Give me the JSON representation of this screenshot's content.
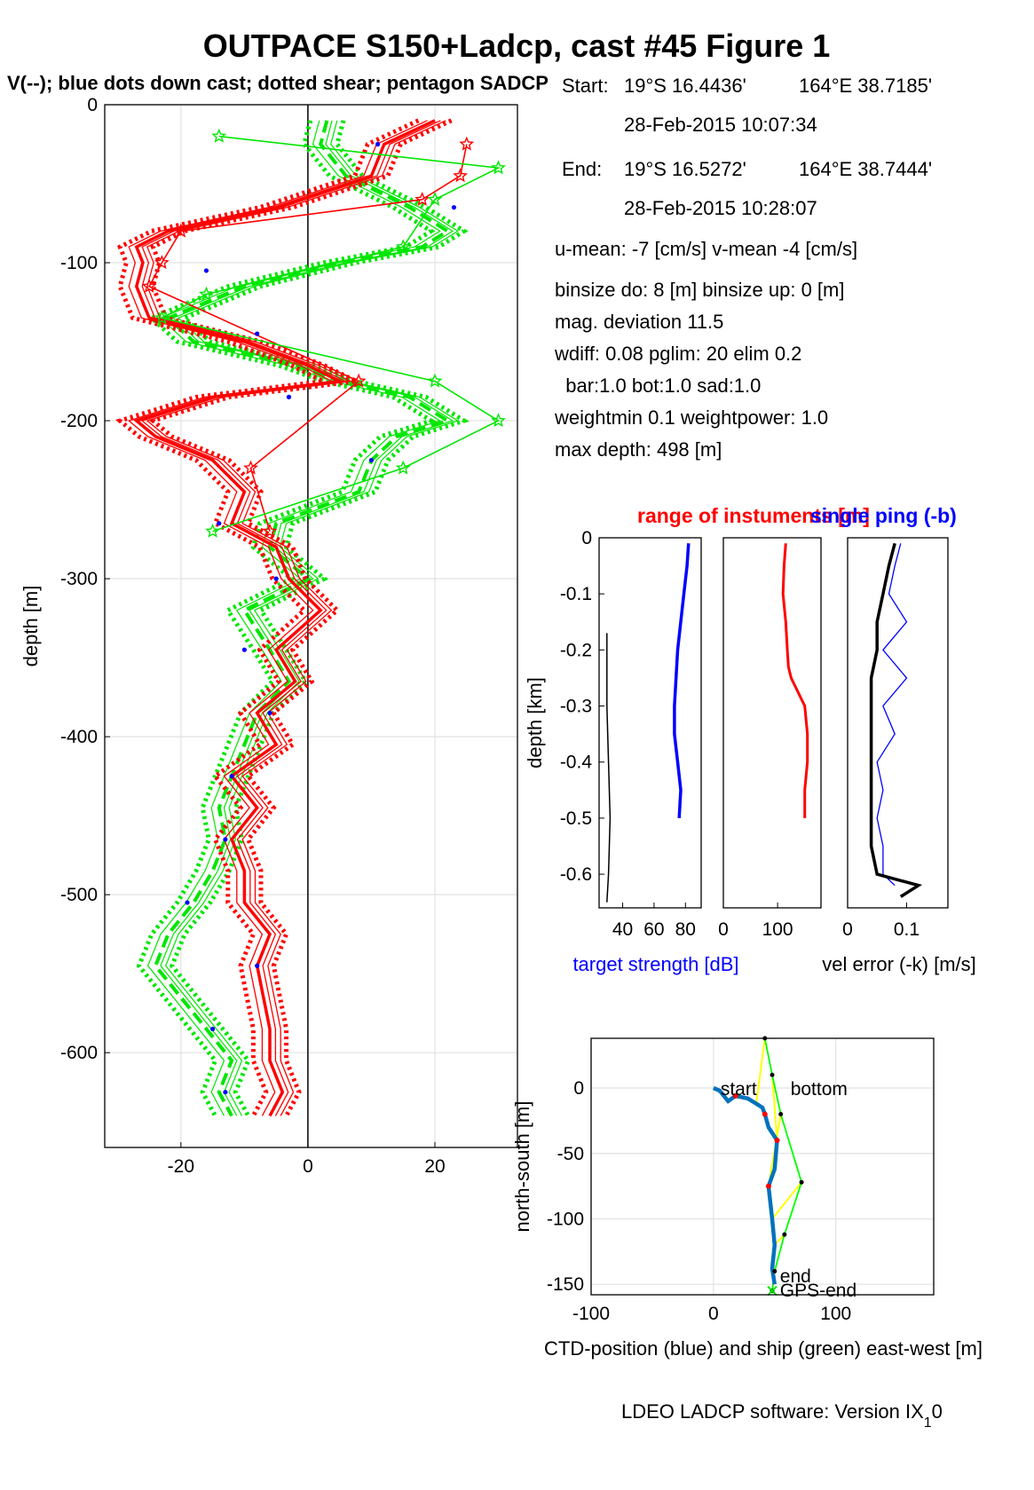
{
  "figure": {
    "title": "OUTPACE S150+Ladcp, cast #45  Figure 1",
    "subtitle": "V(--); blue dots down cast; dotted shear; pentagon SADCP",
    "footer": "LDEO LADCP software: Version IX",
    "footer_sub": "1",
    "footer_end": "0"
  },
  "info": {
    "start_label": "Start:",
    "start_lat": "19°S 16.4436'",
    "start_lon": "164°E 38.7185'",
    "start_time": "28-Feb-2015 10:07:34",
    "end_label": "End:",
    "end_lat": "19°S 16.5272'",
    "end_lon": "164°E 38.7444'",
    "end_time": "28-Feb-2015 10:28:07",
    "lines": [
      "u-mean:  -7 [cm/s]    v-mean  -4 [cm/s]",
      "binsize do: 8 [m]  binsize up:  0 [m]",
      "mag. deviation 11.5",
      "wdiff: 0.08  pglim: 20  elim 0.2",
      "  bar:1.0 bot:1.0 sad:1.0",
      "weightmin 0.1  weightpower: 1.0",
      "max depth: 498 [m]"
    ]
  },
  "colors": {
    "u": "#ff0000",
    "v": "#00e600",
    "down": "#0000ff",
    "ctd": "#0072bd",
    "ship": "#00ff00",
    "conn": "#ffff00",
    "grid": "#e2e2e2"
  },
  "chart_data": [
    {
      "type": "line",
      "ylabel": "depth [m]",
      "xlim": [
        -32,
        33
      ],
      "ylim": [
        -660,
        0
      ],
      "xticks": [
        "-20",
        "0",
        "20"
      ],
      "yticks": [
        "0",
        "-100",
        "-200",
        "-300",
        "-400",
        "-500",
        "-600"
      ],
      "grid": true,
      "series": [
        {
          "name": "u",
          "depth": [
            -10,
            -25,
            -45,
            -65,
            -80,
            -90,
            -100,
            -115,
            -135,
            -150,
            -165,
            -175,
            -185,
            -200,
            -210,
            -225,
            -245,
            -265,
            -280,
            -300,
            -320,
            -345,
            -365,
            -385,
            -405,
            -425,
            -445,
            -465,
            -485,
            -505,
            -525,
            -545,
            -565,
            -585,
            -605,
            -625,
            -640
          ],
          "values": [
            20,
            12,
            10,
            -5,
            -22,
            -27,
            -26,
            -27,
            -25,
            -10,
            0,
            5,
            -15,
            -27,
            -24,
            -15,
            -10,
            -12,
            -5,
            -3,
            2,
            -5,
            -2,
            -8,
            -5,
            -12,
            -8,
            -12,
            -10,
            -10,
            -6,
            -8,
            -7,
            -6,
            -6,
            -4,
            -6
          ]
        },
        {
          "name": "v",
          "depth": [
            -10,
            -25,
            -45,
            -65,
            -80,
            -90,
            -100,
            -115,
            -135,
            -150,
            -165,
            -175,
            -185,
            -200,
            -210,
            -225,
            -245,
            -265,
            -280,
            -300,
            -320,
            -345,
            -365,
            -385,
            -405,
            -425,
            -445,
            -465,
            -485,
            -505,
            -525,
            -545,
            -565,
            -585,
            -605,
            -625,
            -640
          ],
          "values": [
            3,
            2,
            6,
            16,
            22,
            18,
            5,
            -10,
            -22,
            -18,
            -2,
            5,
            16,
            22,
            14,
            10,
            8,
            -5,
            -6,
            0,
            -10,
            -6,
            -3,
            -8,
            -10,
            -12,
            -14,
            -13,
            -15,
            -18,
            -22,
            -24,
            -20,
            -16,
            -12,
            -14,
            -12
          ]
        },
        {
          "name": "down",
          "depth": [
            -25,
            -65,
            -105,
            -145,
            -185,
            -225,
            -265,
            -300,
            -345,
            -385,
            -425,
            -465,
            -505,
            -545,
            -585,
            -625
          ],
          "values": [
            11,
            23,
            -16,
            -8,
            -3,
            10,
            -14,
            -5,
            -10,
            -6,
            -12,
            -13,
            -19,
            -8,
            -15,
            -13
          ]
        },
        {
          "name": "sadcp_u",
          "depth": [
            -25,
            -45,
            -60,
            -80,
            -100,
            -115,
            -175,
            -230,
            -270
          ],
          "values": [
            25,
            24,
            18,
            -20,
            -23,
            -25,
            8,
            -9,
            -6
          ]
        },
        {
          "name": "sadcp_v",
          "depth": [
            -20,
            -40,
            -60,
            -90,
            -120,
            -135,
            -175,
            -200,
            -230,
            -270
          ],
          "values": [
            -14,
            30,
            20,
            15,
            -16,
            -23,
            20,
            30,
            15,
            -15
          ]
        }
      ]
    },
    {
      "type": "line",
      "title": "range of instuments [m]",
      "title2": "single ping (-b)",
      "ylabel": "depth [km]",
      "xlabel": "target strength [dB]",
      "xlabel2": "vel error (-k) [m/s]",
      "panels": [
        {
          "xticks": [
            "40",
            "60",
            "80"
          ],
          "xlim": [
            25,
            90
          ],
          "target_depth": [
            -0.01,
            -0.05,
            -0.1,
            -0.15,
            -0.2,
            -0.25,
            -0.3,
            -0.35,
            -0.4,
            -0.45,
            -0.5
          ],
          "target_values": [
            82,
            81,
            79,
            77,
            75,
            74,
            73,
            73,
            75,
            77,
            76
          ],
          "black_depth": [
            -0.17,
            -0.3,
            -0.4,
            -0.5,
            -0.6,
            -0.65
          ],
          "black_values": [
            30,
            30,
            31,
            32,
            31,
            30
          ]
        },
        {
          "xticks": [
            "0",
            "100"
          ],
          "xlim": [
            0,
            180
          ],
          "range_depth": [
            -0.01,
            -0.05,
            -0.1,
            -0.15,
            -0.2,
            -0.23,
            -0.25,
            -0.3,
            -0.35,
            -0.4,
            -0.45,
            -0.5
          ],
          "range_values": [
            115,
            112,
            110,
            115,
            118,
            120,
            125,
            150,
            155,
            155,
            150,
            150
          ]
        },
        {
          "xticks": [
            "0",
            "0.1"
          ],
          "xlim": [
            0,
            0.17
          ],
          "single_depth": [
            -0.01,
            -0.05,
            -0.1,
            -0.15,
            -0.2,
            -0.25,
            -0.3,
            -0.35,
            -0.4,
            -0.45,
            -0.5,
            -0.55,
            -0.6,
            -0.62
          ],
          "single_values": [
            0.09,
            0.08,
            0.07,
            0.1,
            0.06,
            0.1,
            0.06,
            0.08,
            0.05,
            0.06,
            0.05,
            0.06,
            0.06,
            0.08
          ],
          "vel_depth": [
            -0.01,
            -0.05,
            -0.1,
            -0.15,
            -0.2,
            -0.25,
            -0.3,
            -0.35,
            -0.4,
            -0.45,
            -0.5,
            -0.55,
            -0.6,
            -0.62,
            -0.64
          ],
          "vel_values": [
            0.08,
            0.07,
            0.06,
            0.05,
            0.05,
            0.04,
            0.04,
            0.04,
            0.04,
            0.04,
            0.04,
            0.04,
            0.05,
            0.12,
            0.09
          ]
        }
      ]
    },
    {
      "type": "line",
      "ylabel": "north-south [m]",
      "xlabel": "CTD-position (blue) and ship (green) east-west [m]",
      "xlim": [
        -100,
        180
      ],
      "ylim": [
        -158,
        38
      ],
      "xticks": [
        "-100",
        "0",
        "100"
      ],
      "yticks": [
        "0",
        "-50",
        "-100",
        "-150"
      ],
      "labels": [
        "start",
        "bottom",
        "end",
        "GPS-end"
      ],
      "ctd_x": [
        0,
        5,
        12,
        18,
        28,
        35,
        40,
        42,
        45,
        52,
        50,
        45,
        48,
        50,
        48,
        50
      ],
      "ctd_y": [
        0,
        -2,
        -10,
        -6,
        -8,
        -12,
        -15,
        -20,
        -30,
        -40,
        -62,
        -75,
        -100,
        -120,
        -138,
        -150
      ],
      "ship_x": [
        42,
        48,
        55,
        72,
        58,
        50,
        48
      ],
      "ship_y": [
        38,
        10,
        -20,
        -72,
        -112,
        -140,
        -155
      ]
    }
  ]
}
